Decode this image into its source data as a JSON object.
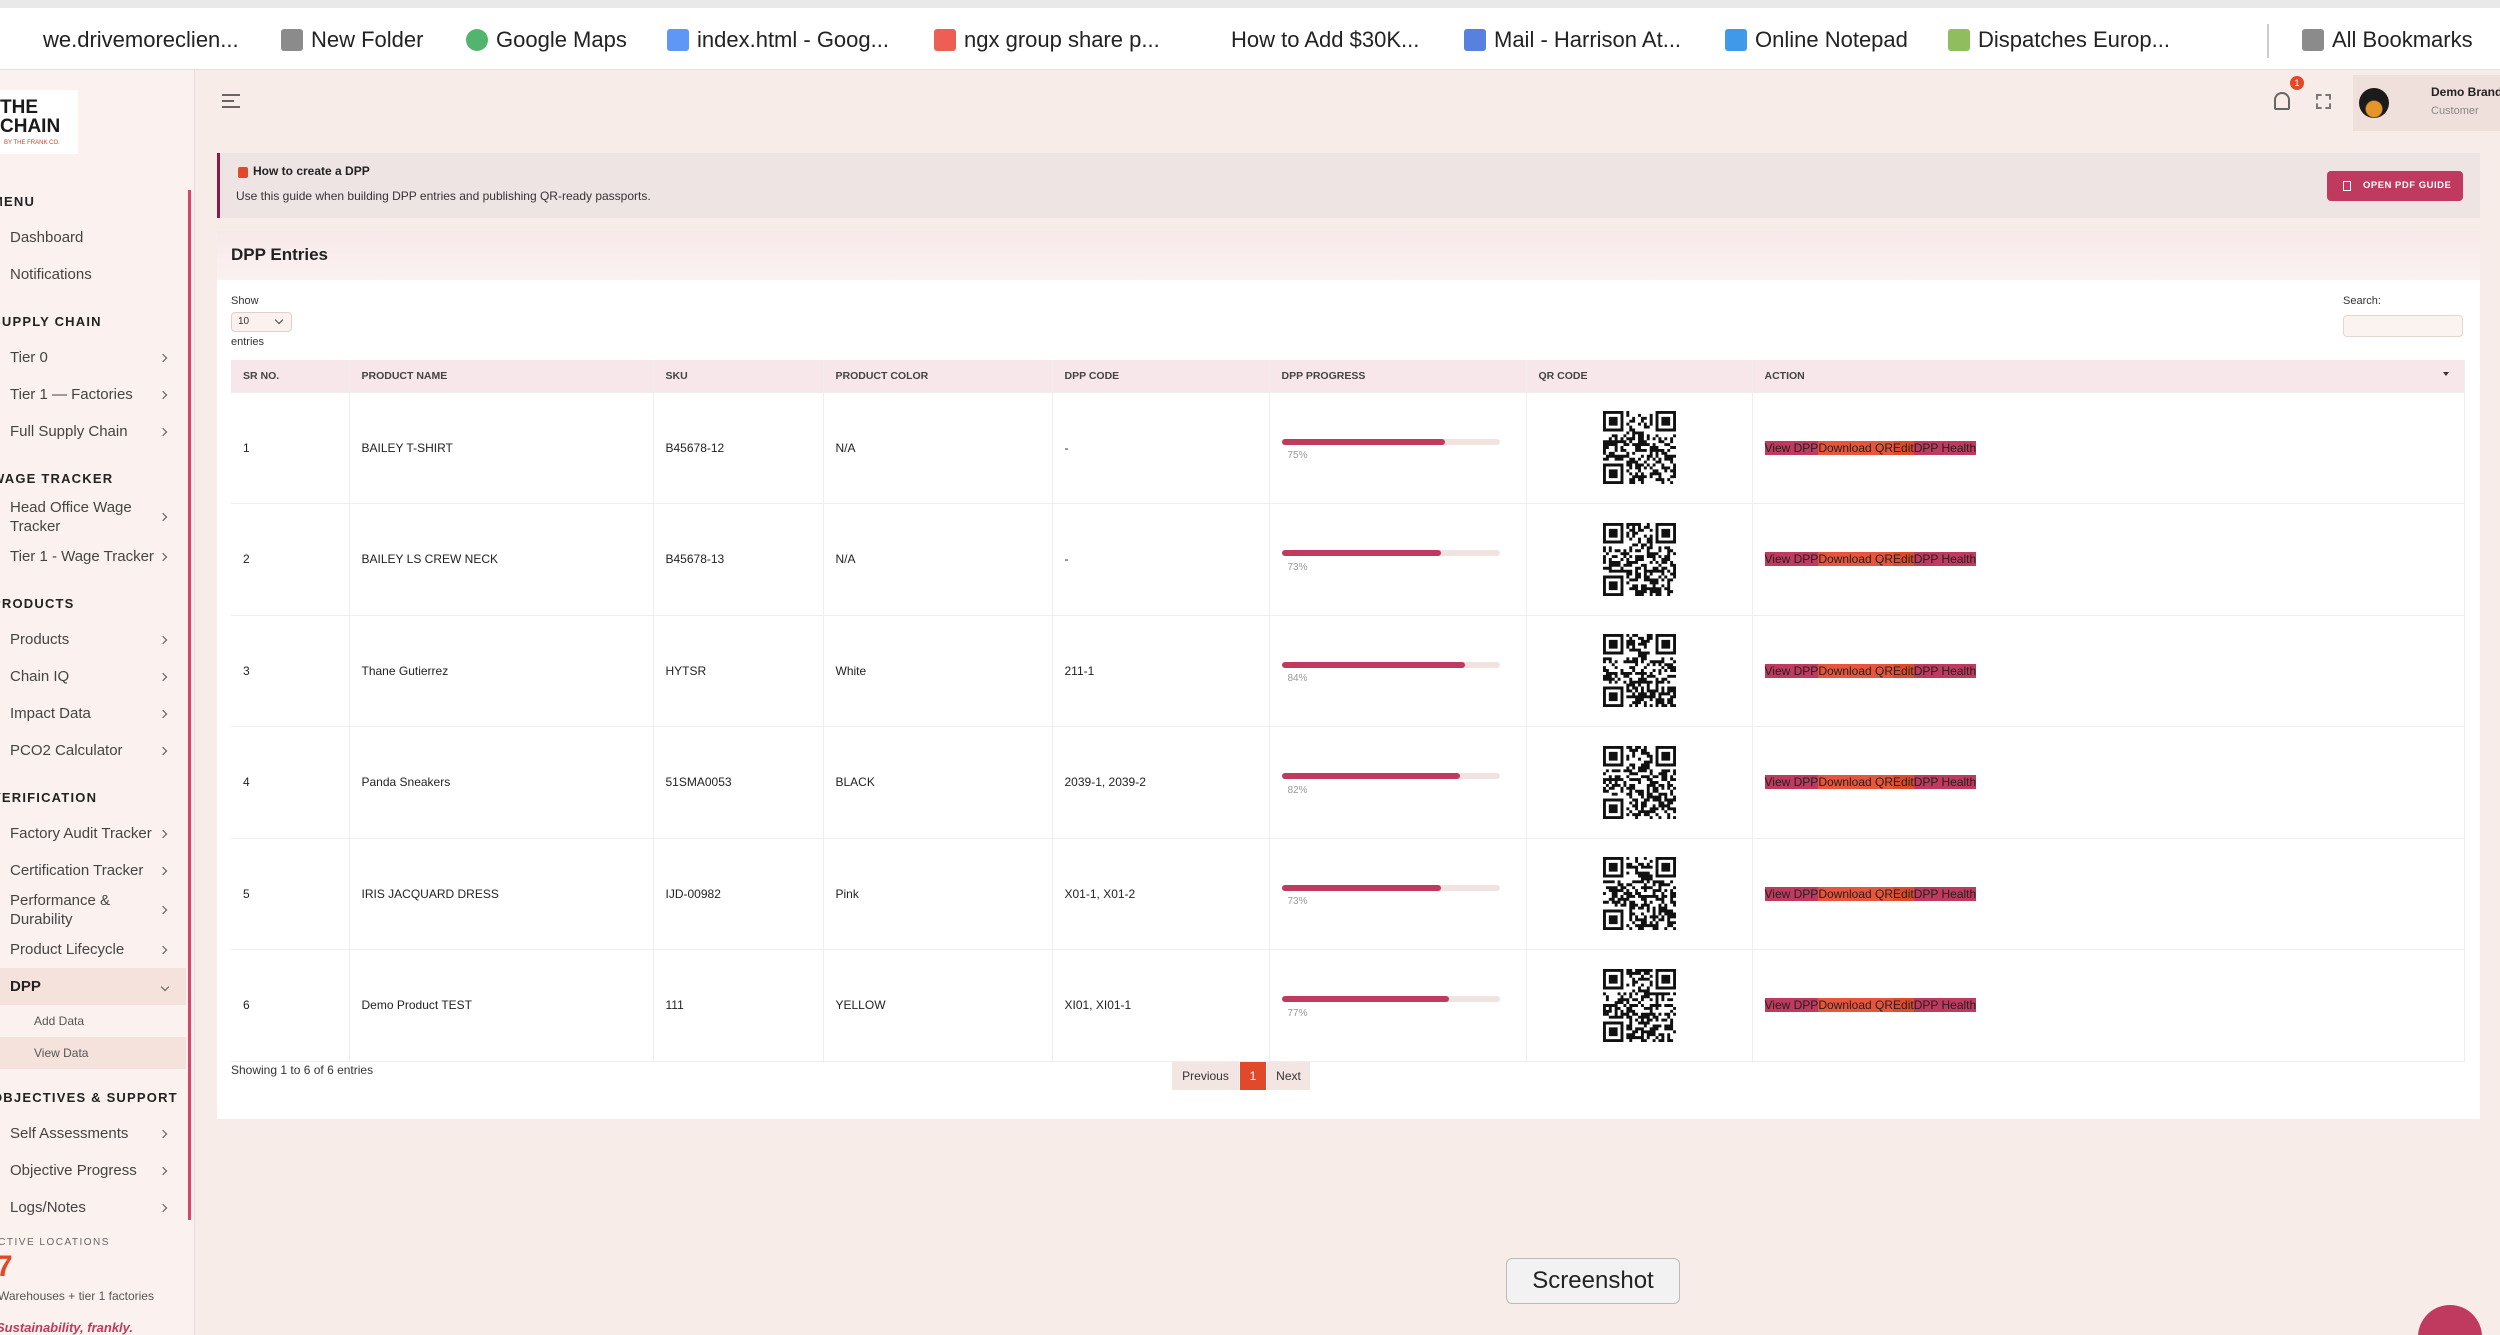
{
  "bookmarks": [
    "we.drivemoreclien...",
    "New Folder",
    "Google Maps",
    "index.html - Goog...",
    "ngx group share p...",
    "How to Add $30K...",
    "Mail - Harrison At...",
    "Online Notepad",
    "Dispatches Europ...",
    "All Bookmarks"
  ],
  "sidebar": {
    "logo": {
      "title": "THE CHAIN",
      "tagline": "BY THE FRANK CO."
    },
    "sections": [
      {
        "title": "MENU",
        "items": [
          {
            "label": "Dashboard"
          },
          {
            "label": "Notifications"
          }
        ]
      },
      {
        "title": "SUPPLY CHAIN",
        "items": [
          {
            "label": "Tier 0",
            "submenu": true
          },
          {
            "label": "Tier 1 — Factories",
            "submenu": true
          },
          {
            "label": "Full Supply Chain",
            "submenu": true
          }
        ]
      },
      {
        "title": "WAGE TRACKER",
        "items": [
          {
            "label": "Head Office Wage Tracker",
            "submenu": true
          },
          {
            "label": "Tier 1 - Wage Tracker",
            "submenu": true
          }
        ]
      },
      {
        "title": "PRODUCTS",
        "items": [
          {
            "label": "Products",
            "submenu": true
          },
          {
            "label": "Chain IQ",
            "submenu": true
          },
          {
            "label": "Impact Data",
            "submenu": true
          },
          {
            "label": "PCO2 Calculator",
            "submenu": true
          }
        ]
      },
      {
        "title": "VERIFICATION",
        "items": [
          {
            "label": "Factory Audit Tracker",
            "submenu": true
          },
          {
            "label": "Certification Tracker",
            "submenu": true
          },
          {
            "label": "Performance & Durability",
            "submenu": true
          },
          {
            "label": "Product Lifecycle",
            "submenu": true
          },
          {
            "label": "DPP",
            "submenu": true,
            "open": true,
            "children": [
              "Add Data",
              "View Data"
            ]
          }
        ]
      },
      {
        "title": "OBJECTIVES & SUPPORT",
        "items": [
          {
            "label": "Self Assessments",
            "submenu": true
          },
          {
            "label": "Objective Progress",
            "submenu": true
          },
          {
            "label": "Logs/Notes",
            "submenu": true
          }
        ]
      }
    ],
    "stats": {
      "label": "ACTIVE LOCATIONS",
      "value": 7,
      "caption": "Warehouses + tier 1 factories"
    },
    "slogan": "Sustainability, frankly."
  },
  "header": {
    "notifications": 1,
    "user": {
      "name": "Demo Brand",
      "role": "Customer"
    }
  },
  "banner": {
    "title": "How to create a DPP",
    "text": "Use this guide when building DPP entries and publishing QR-ready passports.",
    "button": "OPEN PDF GUIDE"
  },
  "dpp_table": {
    "title": "DPP Entries",
    "show_label": "Show",
    "page_length": 10,
    "entries_label": "entries",
    "search_label": "Search:",
    "columns": [
      "SR NO.",
      "PRODUCT NAME",
      "SKU",
      "PRODUCT COLOR",
      "DPP CODE",
      "DPP PROGRESS",
      "QR CODE",
      "ACTION"
    ],
    "rows": [
      {
        "sr": 1,
        "product": "BAILEY T-SHIRT",
        "sku": "B45678-12",
        "color": "N/A",
        "code": "-",
        "progress": 75,
        "progress_label": "75%"
      },
      {
        "sr": 2,
        "product": "BAILEY LS CREW NECK",
        "sku": "B45678-13",
        "color": "N/A",
        "code": "-",
        "progress": 73,
        "progress_label": "73%"
      },
      {
        "sr": 3,
        "product": "Thane Gutierrez",
        "sku": "HYTSR",
        "color": "White",
        "code": "211-1",
        "progress": 84,
        "progress_label": "84%"
      },
      {
        "sr": 4,
        "product": "Panda Sneakers",
        "sku": "51SMA0053",
        "color": "BLACK",
        "code": "2039-1, 2039-2",
        "progress": 82,
        "progress_label": "82%"
      },
      {
        "sr": 5,
        "product": "IRIS JACQUARD DRESS",
        "sku": "IJD-00982",
        "color": "Pink",
        "code": "X01-1, X01-2",
        "progress": 73,
        "progress_label": "73%"
      },
      {
        "sr": 6,
        "product": "Demo Product TEST",
        "sku": "111",
        "color": "YELLOW",
        "code": "XI01, XI01-1",
        "progress": 77,
        "progress_label": "77%"
      }
    ],
    "actions": [
      "View DPP",
      "Download QR",
      "Edit",
      "DPP Health"
    ],
    "footer": {
      "info": "Showing 1 to 6 of 6 entries",
      "previous": "Previous",
      "page": 1,
      "next": "Next"
    }
  },
  "tooltip": "Screenshot"
}
